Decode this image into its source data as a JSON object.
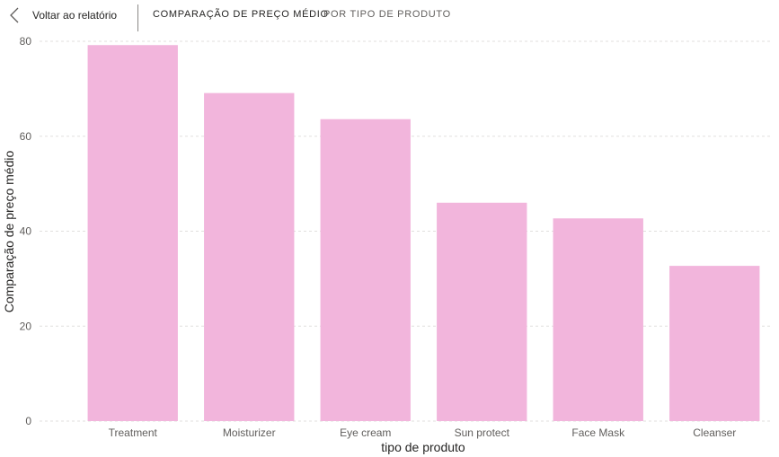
{
  "header": {
    "back_label": "Voltar ao relatório",
    "title": "COMPARAÇÃO DE PREÇO MÉDIO",
    "subtitle": "POR TIPO DE PRODUTO",
    "back_icon": "chevron-left-icon"
  },
  "chart_data": {
    "type": "bar",
    "categories": [
      "Treatment",
      "Moisturizer",
      "Eye cream",
      "Sun protect",
      "Face Mask",
      "Cleanser"
    ],
    "values": [
      79.2,
      69.1,
      63.6,
      46.0,
      42.7,
      32.7
    ],
    "xlabel": "tipo de produto",
    "ylabel": "Comparação de preço médio",
    "ylim": [
      0,
      80
    ],
    "yticks": [
      0,
      20,
      40,
      60,
      80
    ],
    "grid": true,
    "bar_color": "#f2b5dc",
    "grid_color": "#e1dfdd"
  }
}
